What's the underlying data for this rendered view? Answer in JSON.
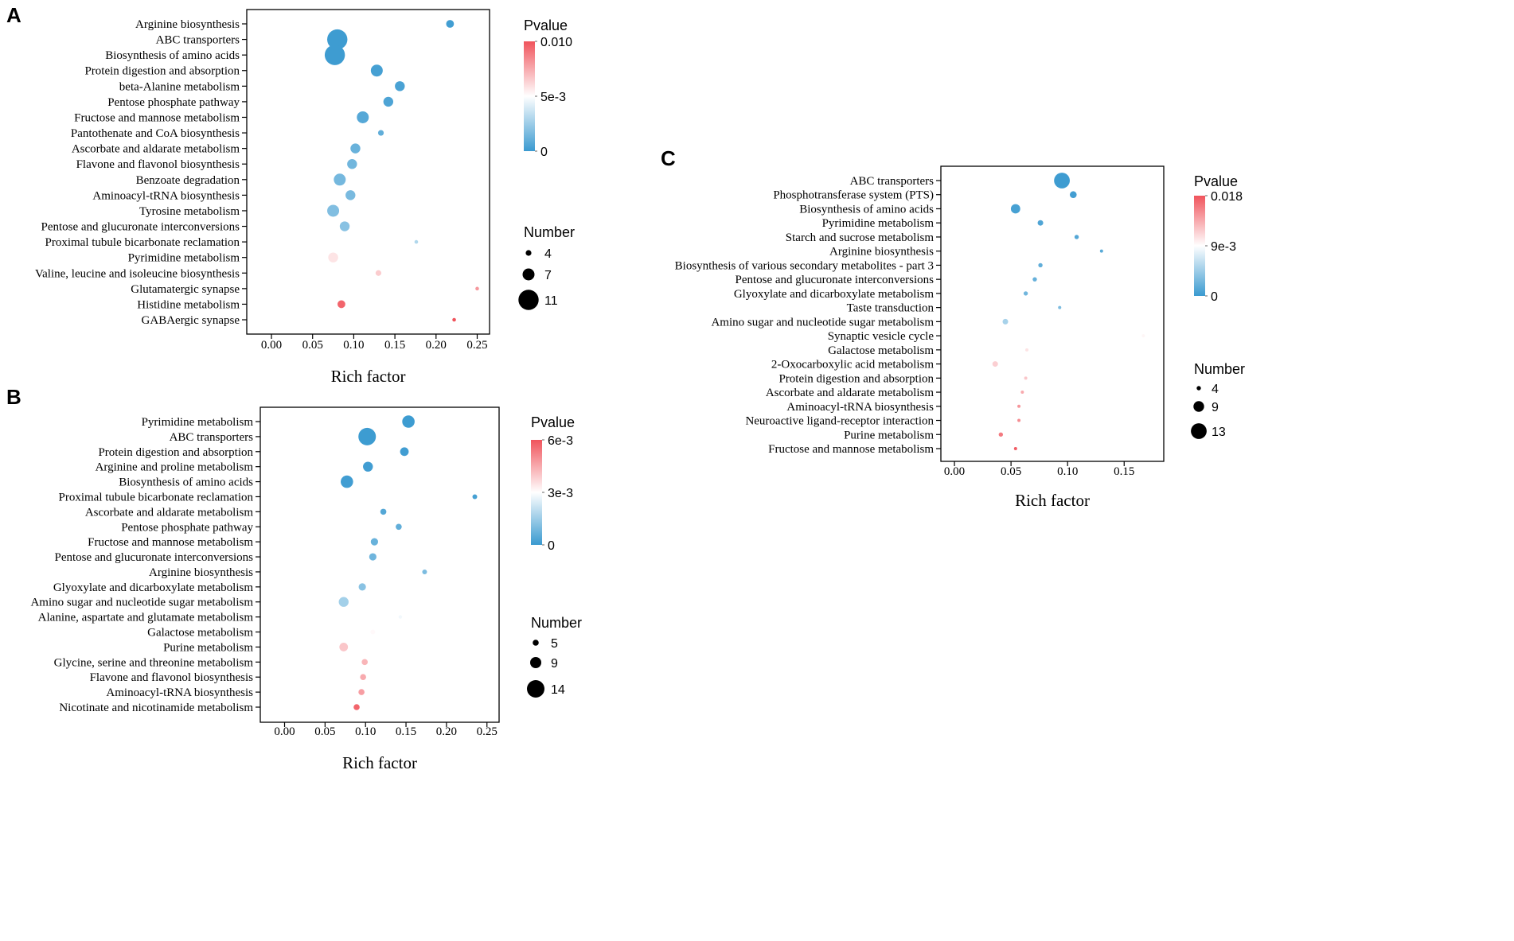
{
  "colors": {
    "low": "#3a9ad0",
    "mid": "#ffffff",
    "high": "#f0545c",
    "axis": "#000000",
    "text": "#000000"
  },
  "chart_data": [
    {
      "panel_label": "A",
      "type": "scatter",
      "xlabel": "Rich factor",
      "xlim": [
        -0.03,
        0.265
      ],
      "xticks": [
        "0.00",
        "0.05",
        "0.10",
        "0.15",
        "0.20",
        "0.25"
      ],
      "xtick_values": [
        0,
        0.05,
        0.1,
        0.15,
        0.2,
        0.25
      ],
      "color_legend": {
        "title": "Pvalue",
        "max": 0.01,
        "labels": [
          "0.010",
          "5e-3",
          "0"
        ]
      },
      "size_legend": {
        "title": "Number",
        "labels": [
          "4",
          "7",
          "11"
        ],
        "values": [
          4,
          7,
          11
        ]
      },
      "points": [
        {
          "term": "Arginine biosynthesis",
          "rich_factor": 0.217,
          "number": 5,
          "pvalue": 0.0002
        },
        {
          "term": "ABC transporters",
          "rich_factor": 0.08,
          "number": 11,
          "pvalue": 0.0001
        },
        {
          "term": "Biosynthesis of amino acids",
          "rich_factor": 0.077,
          "number": 11,
          "pvalue": 0.0001
        },
        {
          "term": "Protein digestion and absorption",
          "rich_factor": 0.128,
          "number": 7,
          "pvalue": 0.0003
        },
        {
          "term": "beta-Alanine metabolism",
          "rich_factor": 0.156,
          "number": 6,
          "pvalue": 0.0004
        },
        {
          "term": "Pentose phosphate pathway",
          "rich_factor": 0.142,
          "number": 6,
          "pvalue": 0.0005
        },
        {
          "term": "Fructose and mannose metabolism",
          "rich_factor": 0.111,
          "number": 7,
          "pvalue": 0.0007
        },
        {
          "term": "Pantothenate and CoA biosynthesis",
          "rich_factor": 0.133,
          "number": 4,
          "pvalue": 0.001
        },
        {
          "term": "Ascorbate and aldarate metabolism",
          "rich_factor": 0.102,
          "number": 6,
          "pvalue": 0.0012
        },
        {
          "term": "Flavone and flavonol biosynthesis",
          "rich_factor": 0.098,
          "number": 6,
          "pvalue": 0.0014
        },
        {
          "term": "Benzoate degradation",
          "rich_factor": 0.083,
          "number": 7,
          "pvalue": 0.0015
        },
        {
          "term": "Aminoacyl-tRNA biosynthesis",
          "rich_factor": 0.096,
          "number": 6,
          "pvalue": 0.0016
        },
        {
          "term": "Tyrosine metabolism",
          "rich_factor": 0.075,
          "number": 7,
          "pvalue": 0.0018
        },
        {
          "term": "Pentose and glucuronate interconversions",
          "rich_factor": 0.089,
          "number": 6,
          "pvalue": 0.002
        },
        {
          "term": "Proximal tubule bicarbonate reclamation",
          "rich_factor": 0.176,
          "number": 3,
          "pvalue": 0.003
        },
        {
          "term": "Pyrimidine metabolism",
          "rich_factor": 0.075,
          "number": 6,
          "pvalue": 0.0058
        },
        {
          "term": "Valine, leucine and isoleucine biosynthesis",
          "rich_factor": 0.13,
          "number": 4,
          "pvalue": 0.0065
        },
        {
          "term": "Glutamatergic synapse",
          "rich_factor": 0.25,
          "number": 3,
          "pvalue": 0.008
        },
        {
          "term": "Histidine metabolism",
          "rich_factor": 0.085,
          "number": 5,
          "pvalue": 0.0095
        },
        {
          "term": "GABAergic synapse",
          "rich_factor": 0.222,
          "number": 3,
          "pvalue": 0.01
        }
      ]
    },
    {
      "panel_label": "B",
      "type": "scatter",
      "xlabel": "Rich factor",
      "xlim": [
        -0.03,
        0.265
      ],
      "xticks": [
        "0.00",
        "0.05",
        "0.10",
        "0.15",
        "0.20",
        "0.25"
      ],
      "xtick_values": [
        0,
        0.05,
        0.1,
        0.15,
        0.2,
        0.25
      ],
      "color_legend": {
        "title": "Pvalue",
        "max": 0.006,
        "labels": [
          "6e-3",
          "3e-3",
          "0"
        ]
      },
      "size_legend": {
        "title": "Number",
        "labels": [
          "5",
          "9",
          "14"
        ],
        "values": [
          5,
          9,
          14
        ]
      },
      "points": [
        {
          "term": "Pyrimidine metabolism",
          "rich_factor": 0.153,
          "number": 10,
          "pvalue": 5e-05
        },
        {
          "term": "ABC transporters",
          "rich_factor": 0.102,
          "number": 14,
          "pvalue": 5e-05
        },
        {
          "term": "Protein digestion and absorption",
          "rich_factor": 0.148,
          "number": 7,
          "pvalue": 0.0001
        },
        {
          "term": "Arginine and proline metabolism",
          "rich_factor": 0.103,
          "number": 8,
          "pvalue": 0.0001
        },
        {
          "term": "Biosynthesis of amino acids",
          "rich_factor": 0.077,
          "number": 10,
          "pvalue": 0.0001
        },
        {
          "term": "Proximal tubule bicarbonate reclamation",
          "rich_factor": 0.235,
          "number": 4,
          "pvalue": 0.0002
        },
        {
          "term": "Ascorbate and aldarate metabolism",
          "rich_factor": 0.122,
          "number": 5,
          "pvalue": 0.0004
        },
        {
          "term": "Pentose phosphate pathway",
          "rich_factor": 0.141,
          "number": 5,
          "pvalue": 0.0006
        },
        {
          "term": "Fructose and mannose metabolism",
          "rich_factor": 0.111,
          "number": 6,
          "pvalue": 0.0007
        },
        {
          "term": "Pentose and glucuronate interconversions",
          "rich_factor": 0.109,
          "number": 6,
          "pvalue": 0.0008
        },
        {
          "term": "Arginine biosynthesis",
          "rich_factor": 0.173,
          "number": 4,
          "pvalue": 0.001
        },
        {
          "term": "Glyoxylate and dicarboxylate metabolism",
          "rich_factor": 0.096,
          "number": 6,
          "pvalue": 0.0012
        },
        {
          "term": "Amino sugar and nucleotide sugar metabolism",
          "rich_factor": 0.073,
          "number": 8,
          "pvalue": 0.0016
        },
        {
          "term": "Alanine, aspartate and glutamate metabolism",
          "rich_factor": 0.143,
          "number": 3,
          "pvalue": 0.0028
        },
        {
          "term": "Galactose metabolism",
          "rich_factor": 0.109,
          "number": 4,
          "pvalue": 0.0031
        },
        {
          "term": "Purine metabolism",
          "rich_factor": 0.073,
          "number": 7,
          "pvalue": 0.004
        },
        {
          "term": "Glycine, serine and threonine metabolism",
          "rich_factor": 0.099,
          "number": 5,
          "pvalue": 0.0043
        },
        {
          "term": "Flavone and flavonol biosynthesis",
          "rich_factor": 0.097,
          "number": 5,
          "pvalue": 0.0045
        },
        {
          "term": "Aminoacyl-tRNA biosynthesis",
          "rich_factor": 0.095,
          "number": 5,
          "pvalue": 0.0047
        },
        {
          "term": "Nicotinate and nicotinamide metabolism",
          "rich_factor": 0.089,
          "number": 5,
          "pvalue": 0.0057
        }
      ]
    },
    {
      "panel_label": "C",
      "type": "scatter",
      "xlabel": "Rich factor",
      "xlim": [
        -0.012,
        0.185
      ],
      "xticks": [
        "0.00",
        "0.05",
        "0.10",
        "0.15"
      ],
      "xtick_values": [
        0,
        0.05,
        0.1,
        0.15
      ],
      "color_legend": {
        "title": "Pvalue",
        "max": 0.018,
        "labels": [
          "0.018",
          "9e-3",
          "0"
        ]
      },
      "size_legend": {
        "title": "Number",
        "labels": [
          "4",
          "9",
          "13"
        ],
        "values": [
          4,
          9,
          13
        ]
      },
      "points": [
        {
          "term": "ABC transporters",
          "rich_factor": 0.095,
          "number": 13,
          "pvalue": 0.0002
        },
        {
          "term": "Phosphotransferase system (PTS)",
          "rich_factor": 0.105,
          "number": 6,
          "pvalue": 0.0004
        },
        {
          "term": "Biosynthesis of amino acids",
          "rich_factor": 0.054,
          "number": 8,
          "pvalue": 0.0006
        },
        {
          "term": "Pyrimidine metabolism",
          "rich_factor": 0.076,
          "number": 5,
          "pvalue": 0.001
        },
        {
          "term": "Starch and sucrose metabolism",
          "rich_factor": 0.108,
          "number": 4,
          "pvalue": 0.0012
        },
        {
          "term": "Arginine biosynthesis",
          "rich_factor": 0.13,
          "number": 3,
          "pvalue": 0.0014
        },
        {
          "term": "Biosynthesis of various secondary metabolites - part 3",
          "rich_factor": 0.076,
          "number": 4,
          "pvalue": 0.0018
        },
        {
          "term": "Pentose and glucuronate interconversions",
          "rich_factor": 0.071,
          "number": 4,
          "pvalue": 0.002
        },
        {
          "term": "Glyoxylate and dicarboxylate metabolism",
          "rich_factor": 0.063,
          "number": 4,
          "pvalue": 0.0025
        },
        {
          "term": "Taste transduction",
          "rich_factor": 0.093,
          "number": 3,
          "pvalue": 0.003
        },
        {
          "term": "Amino sugar and nucleotide sugar metabolism",
          "rich_factor": 0.045,
          "number": 5,
          "pvalue": 0.005
        },
        {
          "term": "Synaptic vesicle cycle",
          "rich_factor": 0.167,
          "number": 2,
          "pvalue": 0.0095
        },
        {
          "term": "Galactose metabolism",
          "rich_factor": 0.064,
          "number": 3,
          "pvalue": 0.0105
        },
        {
          "term": "2-Oxocarboxylic acid metabolism",
          "rich_factor": 0.036,
          "number": 5,
          "pvalue": 0.0115
        },
        {
          "term": "Protein digestion and absorption",
          "rich_factor": 0.063,
          "number": 3,
          "pvalue": 0.012
        },
        {
          "term": "Ascorbate and aldarate metabolism",
          "rich_factor": 0.06,
          "number": 3,
          "pvalue": 0.0135
        },
        {
          "term": "Aminoacyl-tRNA biosynthesis",
          "rich_factor": 0.057,
          "number": 3,
          "pvalue": 0.0145
        },
        {
          "term": "Neuroactive ligand-receptor interaction",
          "rich_factor": 0.057,
          "number": 3,
          "pvalue": 0.015
        },
        {
          "term": "Purine metabolism",
          "rich_factor": 0.041,
          "number": 4,
          "pvalue": 0.016
        },
        {
          "term": "Fructose and mannose metabolism",
          "rich_factor": 0.054,
          "number": 3,
          "pvalue": 0.0175
        }
      ]
    }
  ]
}
